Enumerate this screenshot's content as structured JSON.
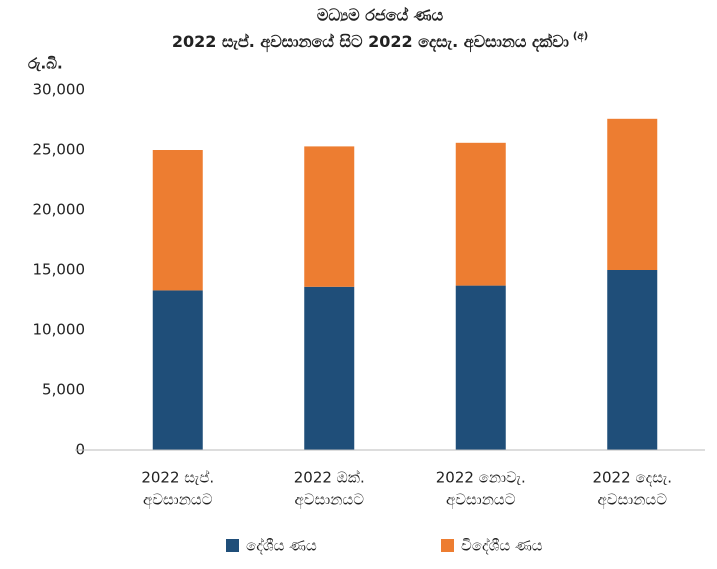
{
  "chart_data": {
    "type": "stacked_bar",
    "title": "මධ්‍යම රජයේ ණය",
    "subtitle": "2022 සැප්. අවසානයේ සිට 2022 දෙසැ. අවසානය දක්වා",
    "subtitle_note": "(අ)",
    "y_label": "රු.බි.",
    "categories": [
      [
        "2022 සැප්.",
        "අවසානයට"
      ],
      [
        "2022 ඔක්.",
        "අවසානයට"
      ],
      [
        "2022 නොවැ.",
        "අවසානයට"
      ],
      [
        "2022 දෙසැ.",
        "අවසානයට"
      ]
    ],
    "series": [
      {
        "name": "දේශීය ණය",
        "color": "#1f4e79",
        "values": [
          13300,
          13600,
          13700,
          15000
        ]
      },
      {
        "name": "විදේශීය ණය",
        "color": "#ed7d31",
        "values": [
          11700,
          11700,
          11900,
          12600
        ]
      }
    ],
    "ylim": [
      0,
      30000
    ],
    "yticks": [
      0,
      {
        "value": 5000,
        "label": "5,000"
      },
      {
        "value": 10000,
        "label": "10,000"
      },
      {
        "value": 15000,
        "label": "15,000"
      },
      {
        "value": 20000,
        "label": "20,000"
      },
      {
        "value": 25000,
        "label": "25,000"
      },
      {
        "value": 30000,
        "label": "30,000"
      }
    ],
    "grid": false,
    "legend": "bottom"
  }
}
